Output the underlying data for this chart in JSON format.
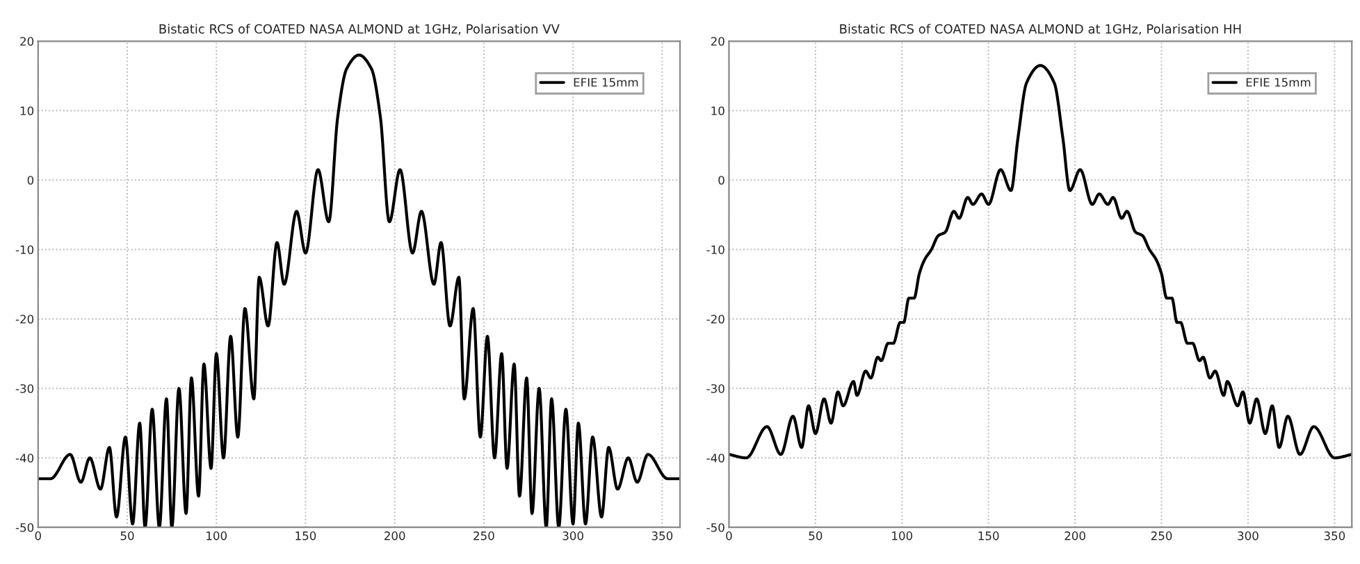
{
  "chart_data": [
    {
      "type": "line",
      "title": "Bistatic RCS of COATED NASA ALMOND at 1GHz, Polarisation VV",
      "xlim": [
        0,
        360
      ],
      "ylim": [
        -50,
        20
      ],
      "xticks": [
        0,
        50,
        100,
        150,
        200,
        250,
        300,
        350
      ],
      "yticks": [
        -50,
        -40,
        -30,
        -20,
        -10,
        0,
        10,
        20
      ],
      "grid": true,
      "legend": "top right",
      "line_style": "solid",
      "series": [
        {
          "name": "EFIE 15mm",
          "color": "#000000",
          "x": [
            0,
            7,
            18,
            24,
            29,
            35,
            40,
            44,
            49,
            53,
            57,
            60,
            64,
            68,
            72,
            75,
            79,
            83,
            86,
            90,
            93,
            97,
            100,
            104,
            108,
            112,
            116,
            121,
            124,
            129,
            134,
            138,
            145,
            150,
            157,
            163,
            168,
            173,
            180,
            187,
            192,
            197,
            203,
            210,
            215,
            222,
            226,
            231,
            236,
            239,
            244,
            248,
            252,
            256,
            260,
            263,
            267,
            270,
            274,
            277,
            281,
            285,
            288,
            292,
            296,
            300,
            303,
            307,
            311,
            316,
            320,
            325,
            331,
            336,
            342,
            353,
            360
          ],
          "values": [
            -43,
            -43,
            -39.5,
            -43.5,
            -40,
            -44.5,
            -38.5,
            -48.5,
            -37,
            -49.5,
            -35,
            -50,
            -33,
            -50,
            -31.5,
            -50,
            -30,
            -48,
            -28.5,
            -45.5,
            -26.5,
            -41.5,
            -25,
            -40,
            -22.5,
            -37,
            -18.5,
            -31.5,
            -14,
            -21,
            -9,
            -15,
            -4.5,
            -10.5,
            1.5,
            -6,
            9,
            16,
            18,
            16,
            9,
            -6,
            1.5,
            -10.5,
            -4.5,
            -15,
            -9,
            -21,
            -14,
            -31.5,
            -18.5,
            -37,
            -22.5,
            -40,
            -25,
            -41.5,
            -26.5,
            -45.5,
            -28.5,
            -48,
            -30,
            -50,
            -31.5,
            -50,
            -33,
            -49.5,
            -35,
            -49.5,
            -37,
            -48.5,
            -38.5,
            -44.5,
            -40,
            -43.5,
            -39.5,
            -43,
            -43
          ]
        }
      ]
    },
    {
      "type": "line",
      "title": "Bistatic RCS of COATED NASA ALMOND at 1GHz, Polarisation HH",
      "xlim": [
        0,
        360
      ],
      "ylim": [
        -50,
        20
      ],
      "xticks": [
        0,
        50,
        100,
        150,
        200,
        250,
        300,
        350
      ],
      "yticks": [
        -50,
        -40,
        -30,
        -20,
        -10,
        0,
        10,
        20
      ],
      "grid": true,
      "legend": "top right",
      "line_style": "solid",
      "series": [
        {
          "name": "EFIE 15mm",
          "color": "#000000",
          "x": [
            0,
            10,
            22,
            30,
            37,
            42,
            46,
            50,
            55,
            59,
            63,
            66,
            72,
            74,
            79,
            82,
            86,
            88,
            92,
            95,
            99,
            101,
            104,
            107,
            110,
            113,
            117,
            121,
            125,
            130,
            133,
            138,
            141,
            146,
            150,
            157,
            163,
            167,
            172,
            180,
            188,
            193,
            197,
            203,
            210,
            214,
            219,
            222,
            227,
            230,
            235,
            239,
            243,
            247,
            250,
            253,
            256,
            259,
            261,
            265,
            268,
            272,
            274,
            278,
            281,
            286,
            288,
            294,
            297,
            301,
            305,
            310,
            314,
            318,
            323,
            330,
            338,
            350,
            360
          ],
          "values": [
            -39.5,
            -40,
            -35.5,
            -39.5,
            -34,
            -38.5,
            -32.5,
            -36.5,
            -31.5,
            -35,
            -30.5,
            -32.5,
            -29,
            -31,
            -27.5,
            -28.5,
            -25.5,
            -26,
            -23.5,
            -23.5,
            -20.5,
            -20.5,
            -17,
            -17,
            -13.5,
            -11.5,
            -10,
            -8,
            -7.5,
            -4.5,
            -5.5,
            -2.5,
            -3.5,
            -2,
            -3.5,
            1.5,
            -1.5,
            6,
            14,
            16.5,
            14,
            6,
            -1.5,
            1.5,
            -3.5,
            -2,
            -3.5,
            -2.5,
            -5.5,
            -4.5,
            -7.5,
            -8,
            -10,
            -11.5,
            -13.5,
            -17,
            -17,
            -20.5,
            -20.5,
            -23.5,
            -23.5,
            -26,
            -25.5,
            -28.5,
            -27.5,
            -31,
            -29,
            -32.5,
            -30.5,
            -35,
            -31.5,
            -36.5,
            -32.5,
            -38.5,
            -34,
            -39.5,
            -35.5,
            -40,
            -39.5
          ]
        }
      ]
    }
  ]
}
